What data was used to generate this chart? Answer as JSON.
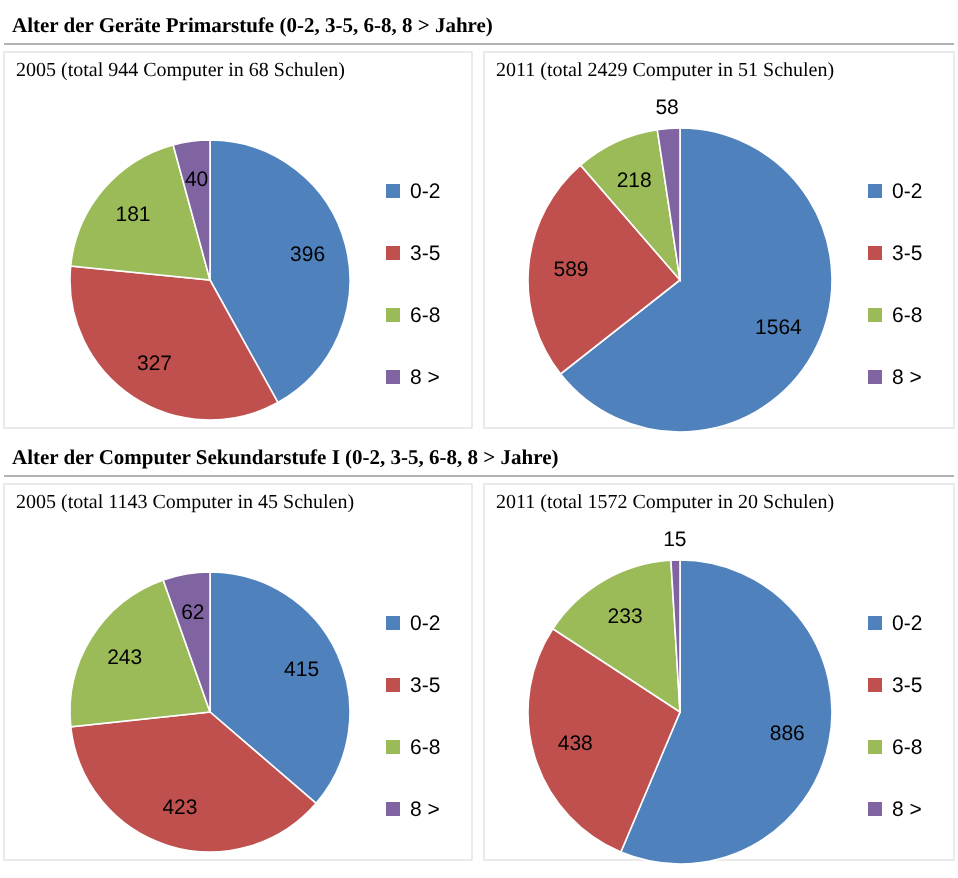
{
  "chart_data": [
    {
      "type": "pie",
      "title": "Alter der Geräte Primarstufe (0-2, 3-5, 6-8, 8 > Jahre)",
      "subtitle": "2005 (total 944 Computer in 68 Schulen)",
      "categories": [
        "0-2",
        "3-5",
        "6-8",
        "8 >"
      ],
      "values": [
        396,
        327,
        181,
        40
      ],
      "colors": [
        "#4f81bd",
        "#c0504d",
        "#9bbb59",
        "#8064a2"
      ],
      "data_labels": true,
      "legend": "right"
    },
    {
      "type": "pie",
      "subtitle": "2011 (total 2429 Computer in 51 Schulen)",
      "categories": [
        "0-2",
        "3-5",
        "6-8",
        "8 >"
      ],
      "values": [
        1564,
        589,
        218,
        58
      ],
      "colors": [
        "#4f81bd",
        "#c0504d",
        "#9bbb59",
        "#8064a2"
      ],
      "data_labels": true,
      "legend": "right"
    },
    {
      "type": "pie",
      "title": "Alter der Computer Sekundarstufe I (0-2, 3-5, 6-8, 8 > Jahre)",
      "subtitle": "2005 (total 1143 Computer in 45 Schulen)",
      "categories": [
        "0-2",
        "3-5",
        "6-8",
        "8 >"
      ],
      "values": [
        415,
        423,
        243,
        62
      ],
      "colors": [
        "#4f81bd",
        "#c0504d",
        "#9bbb59",
        "#8064a2"
      ],
      "data_labels": true,
      "legend": "right"
    },
    {
      "type": "pie",
      "subtitle": "2011 (total 1572 Computer in 20 Schulen)",
      "categories": [
        "0-2",
        "3-5",
        "6-8",
        "8 >"
      ],
      "values": [
        886,
        438,
        233,
        15
      ],
      "colors": [
        "#4f81bd",
        "#c0504d",
        "#9bbb59",
        "#8064a2"
      ],
      "data_labels": true,
      "legend": "right"
    }
  ]
}
